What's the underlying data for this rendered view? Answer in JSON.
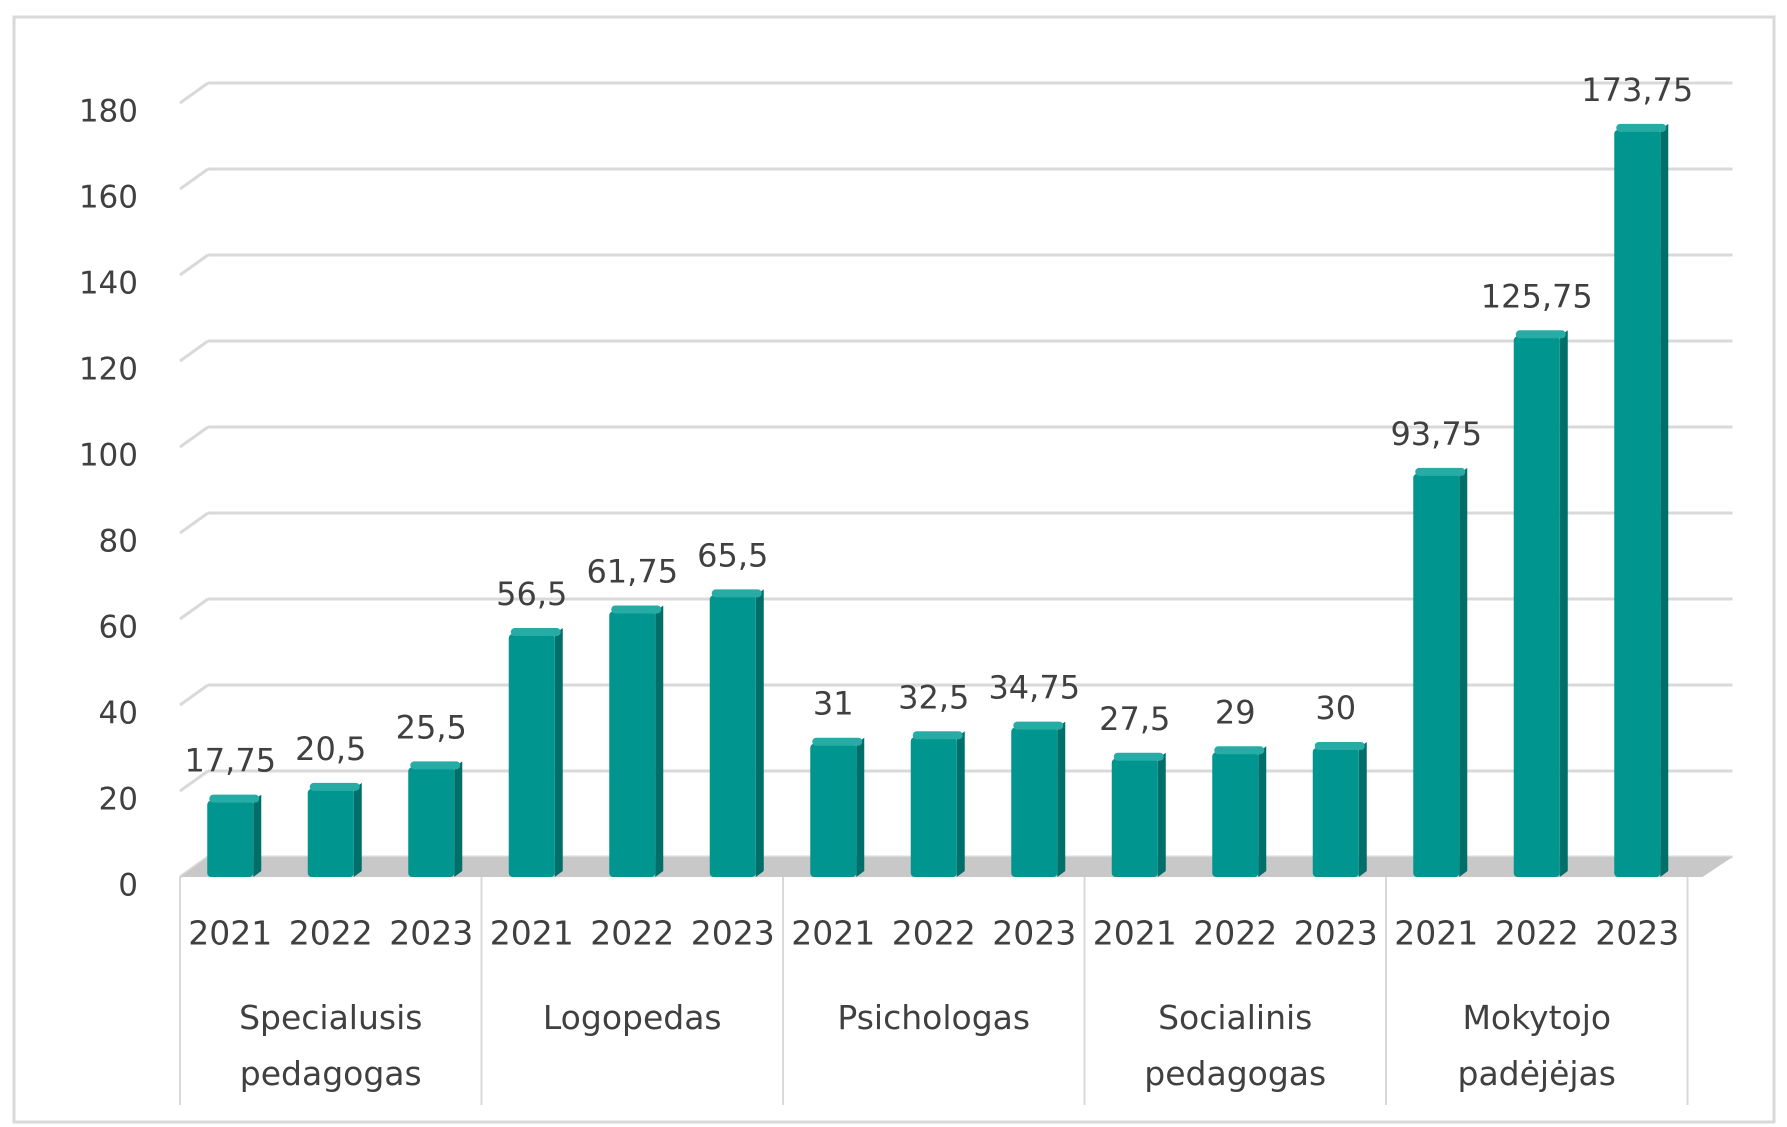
{
  "chart_data": {
    "type": "bar",
    "color": "#00968f",
    "ylim": [
      0,
      180
    ],
    "yticks": [
      0,
      20,
      40,
      60,
      80,
      100,
      120,
      140,
      160,
      180
    ],
    "grid": true,
    "groups": [
      {
        "label": "Specialusis pedagogas",
        "categories": [
          "2021",
          "2022",
          "2023"
        ],
        "values": [
          17.75,
          20.5,
          25.5
        ],
        "value_labels": [
          "17,75",
          "20,5",
          "25,5"
        ]
      },
      {
        "label": "Logopedas",
        "categories": [
          "2021",
          "2022",
          "2023"
        ],
        "values": [
          56.5,
          61.75,
          65.5
        ],
        "value_labels": [
          "56,5",
          "61,75",
          "65,5"
        ]
      },
      {
        "label": "Psichologas",
        "categories": [
          "2021",
          "2022",
          "2023"
        ],
        "values": [
          31,
          32.5,
          34.75
        ],
        "value_labels": [
          "31",
          "32,5",
          "34,75"
        ]
      },
      {
        "label": "Socialinis pedagogas",
        "categories": [
          "2021",
          "2022",
          "2023"
        ],
        "values": [
          27.5,
          29,
          30
        ],
        "value_labels": [
          "27,5",
          "29",
          "30"
        ]
      },
      {
        "label": "Mokytojo padėjėjas",
        "categories": [
          "2021",
          "2022",
          "2023"
        ],
        "values": [
          93.75,
          125.75,
          173.75
        ],
        "value_labels": [
          "93,75",
          "125,75",
          "173,75"
        ]
      }
    ]
  }
}
